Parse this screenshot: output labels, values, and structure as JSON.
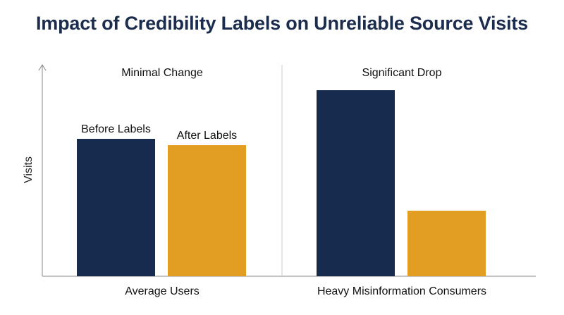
{
  "chart_data": {
    "type": "bar",
    "title": "Impact of Credibility Labels on Unreliable Source Visits",
    "ylabel": "Visits",
    "xlabel": "",
    "categories": [
      "Average Users",
      "Heavy Misinformation Consumers"
    ],
    "group_annotations": [
      "Minimal Change",
      "Significant Drop"
    ],
    "series": [
      {
        "name": "Before Labels",
        "values": [
          65,
          88
        ],
        "color": "#172b4f"
      },
      {
        "name": "After Labels",
        "values": [
          62,
          31
        ],
        "color": "#e29e22"
      }
    ],
    "ylim": [
      0,
      100
    ],
    "y_ticks_shown": false,
    "grid": false,
    "legend": "inline labels above first group bars",
    "axis_color": "#888888",
    "divider_color": "#cccccc"
  }
}
